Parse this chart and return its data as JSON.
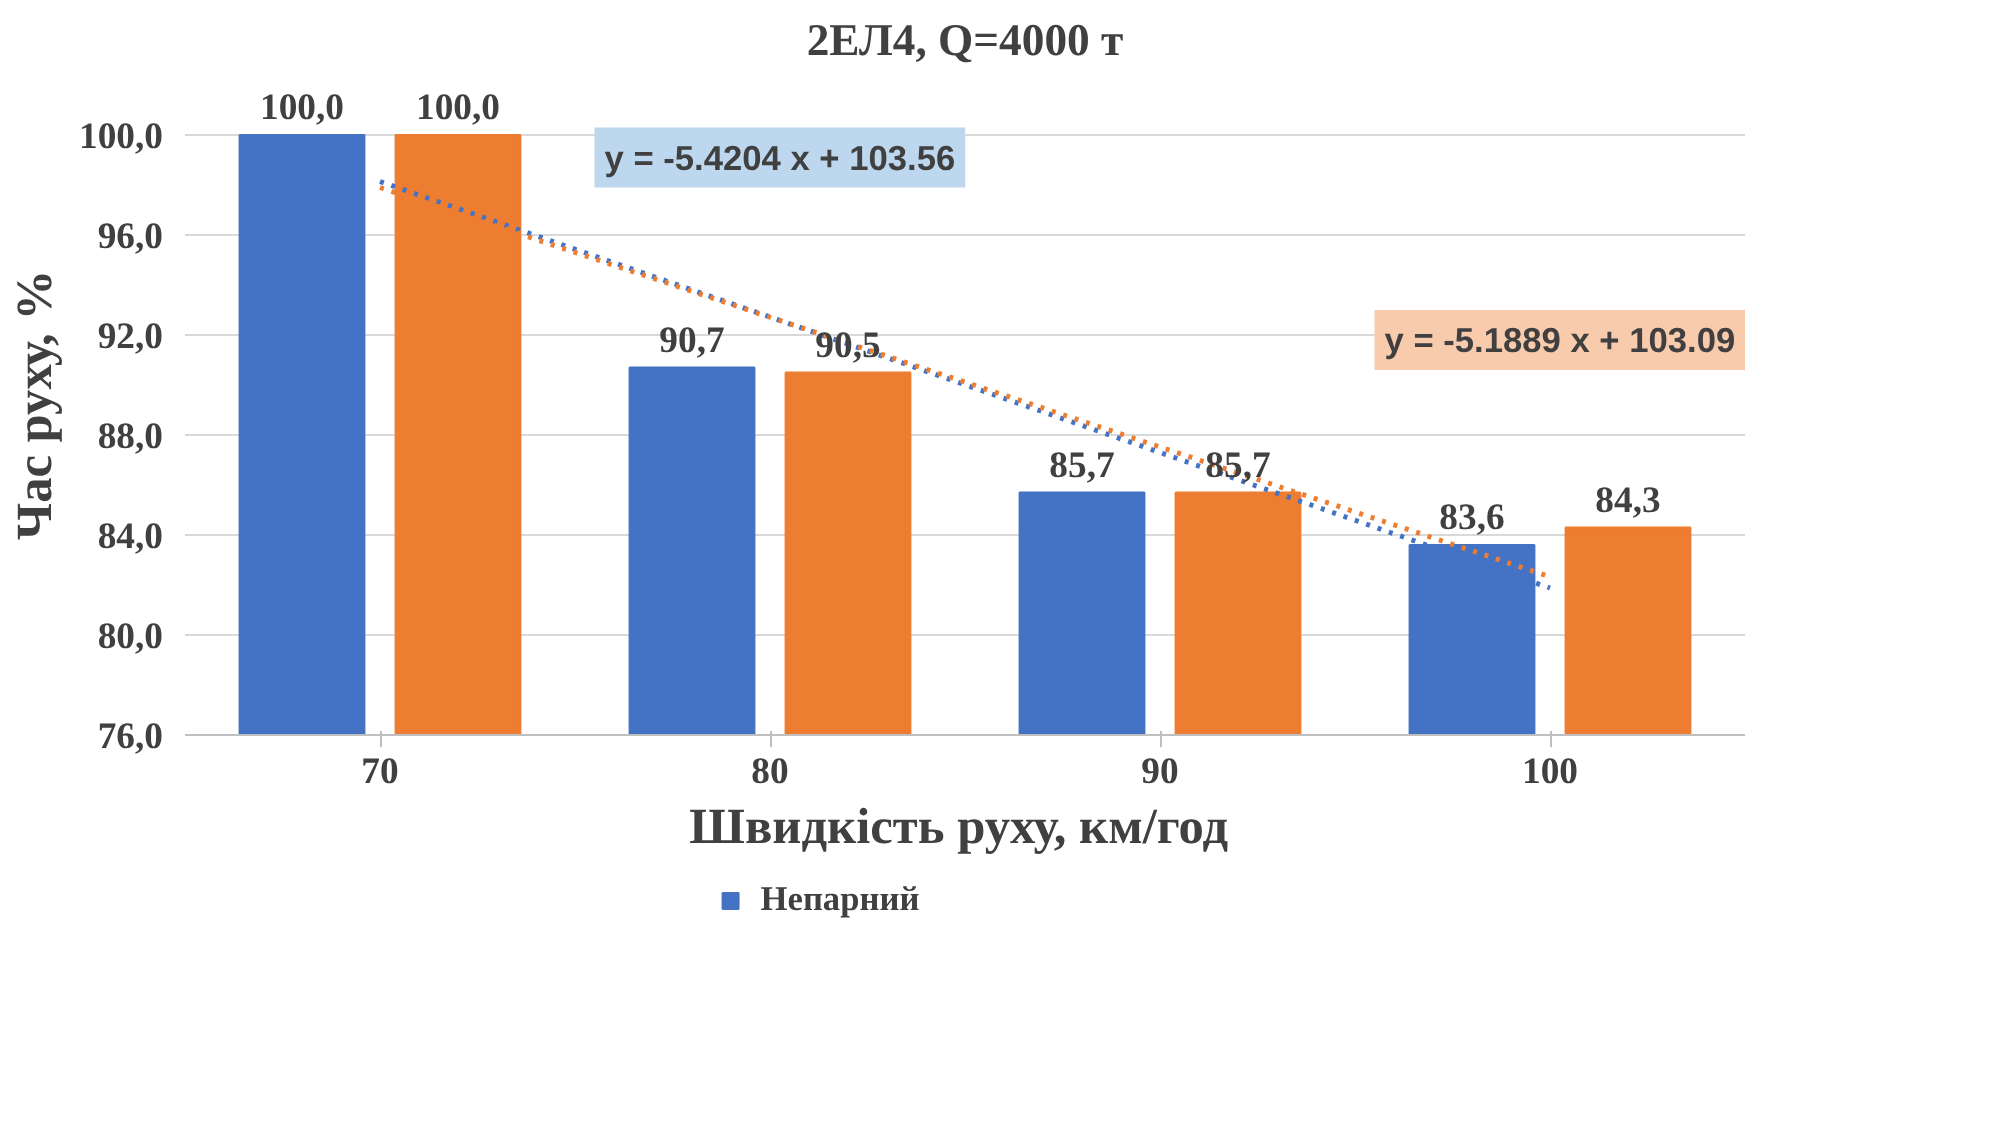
{
  "chart_data": {
    "type": "bar",
    "title": "2ЕЛ4, Q=4000 т",
    "xlabel": "Швидкість  руху, км/год",
    "ylabel": "Час руху, %",
    "categories": [
      "70",
      "80",
      "90",
      "100"
    ],
    "series": [
      {
        "name": "Непарний",
        "color": "#4472c4",
        "values": [
          100.0,
          90.7,
          85.7,
          83.6
        ],
        "value_labels": [
          "100,0",
          "90,7",
          "85,7",
          "83,6"
        ]
      },
      {
        "color": "#ed7d31",
        "values": [
          100.0,
          90.5,
          85.7,
          84.3
        ],
        "value_labels": [
          "100,0",
          "90,5",
          "85,7",
          "84,3"
        ]
      },
      {
        "type": "line",
        "line_style": "dotted",
        "color": "#4472c4",
        "x": [
          "70",
          "80",
          "90",
          "100"
        ],
        "values": [
          98.14,
          92.72,
          87.3,
          81.88
        ]
      },
      {
        "type": "line",
        "line_style": "dotted",
        "color": "#ed7d31",
        "x": [
          "70",
          "80",
          "90",
          "100"
        ],
        "values": [
          97.9,
          92.71,
          87.52,
          82.33
        ]
      }
    ],
    "annotations": [
      "y = -5.4204 x + 103.56",
      "y = -5.1889 x + 103.09"
    ],
    "ylim": [
      76,
      100
    ],
    "yticks": [
      {
        "value": 76,
        "label": "76,0"
      },
      {
        "value": 80,
        "label": "80,0"
      },
      {
        "value": 84,
        "label": "84,0"
      },
      {
        "value": 88,
        "label": "88,0"
      },
      {
        "value": 92,
        "label": "92,0"
      },
      {
        "value": 96,
        "label": "96,0"
      },
      {
        "value": 100,
        "label": "100,0"
      }
    ],
    "grid": "y",
    "legend": "bottom"
  }
}
